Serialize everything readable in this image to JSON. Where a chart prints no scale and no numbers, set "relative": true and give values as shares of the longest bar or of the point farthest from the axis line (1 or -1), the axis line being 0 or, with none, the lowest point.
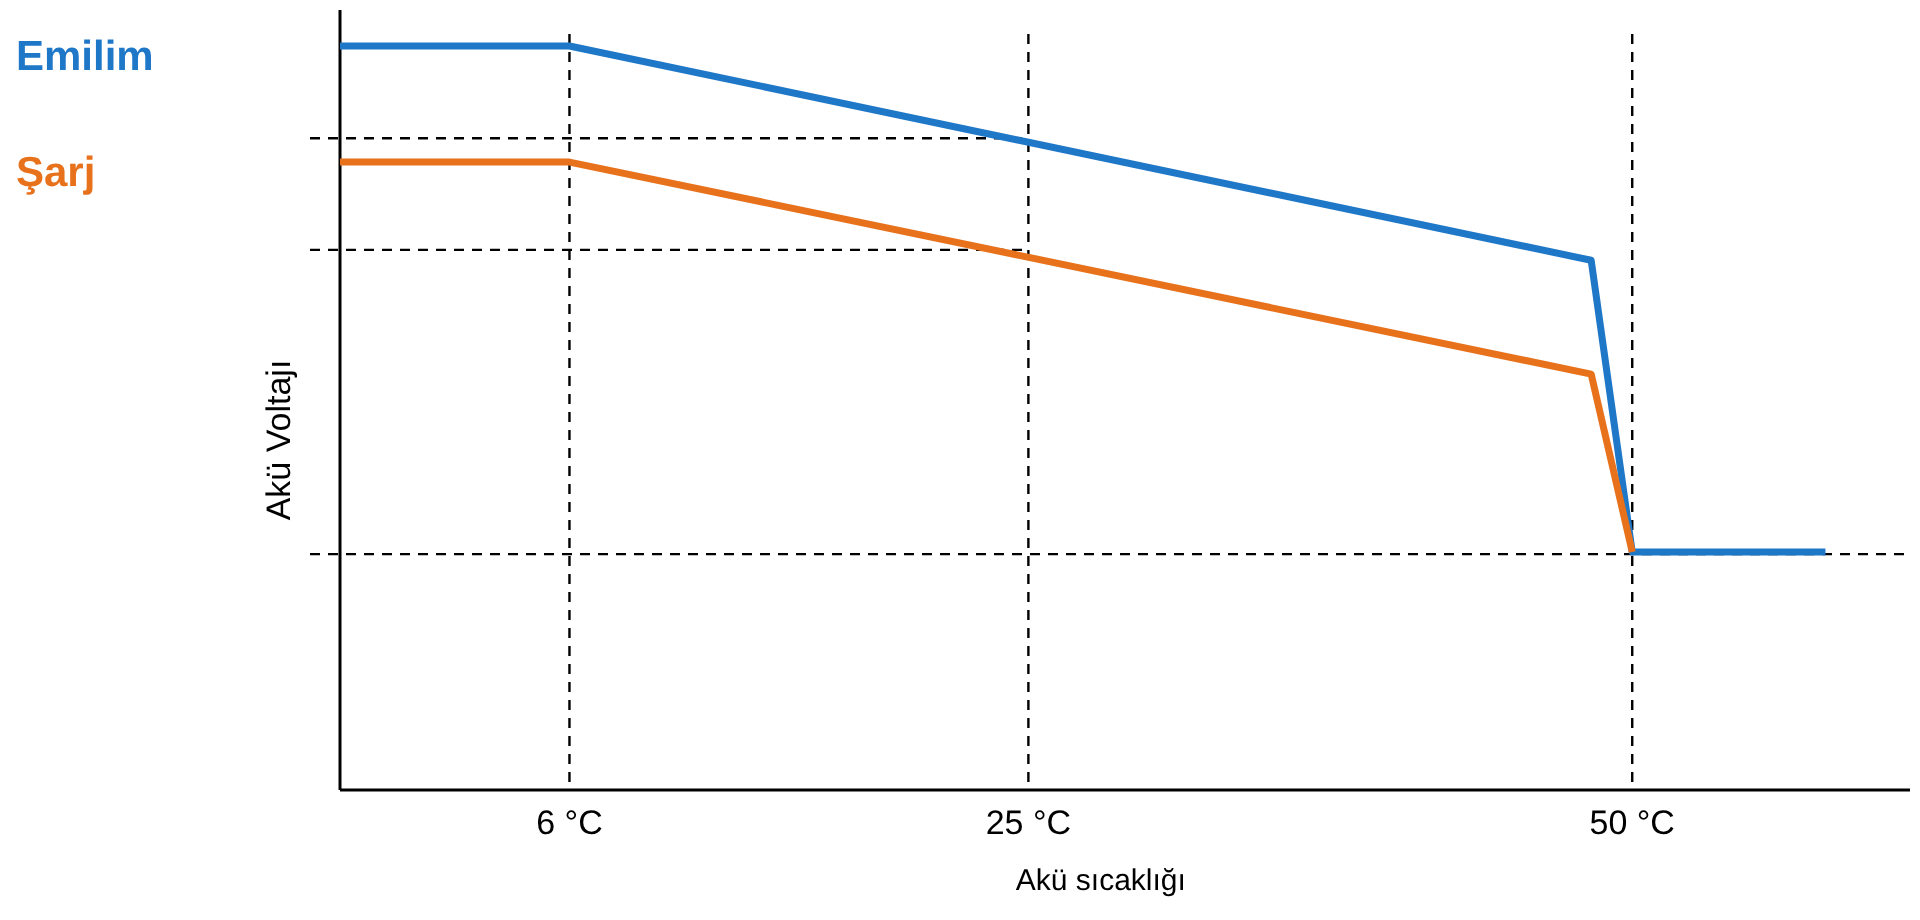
{
  "chart_data": {
    "type": "line",
    "relative": true,
    "xlabel": "Akü sıcaklığı",
    "ylabel": "Akü Voltajı",
    "xlim": [
      -3.5,
      61.5
    ],
    "xticks": [
      {
        "value": 6,
        "label": "6 °C"
      },
      {
        "value": 25,
        "label": "25 °C"
      },
      {
        "value": 50,
        "label": "50 °C"
      }
    ],
    "tick_labels": "x",
    "grid": false,
    "legend": false,
    "line_style": "solid",
    "marker": "none",
    "series": [
      {
        "name": "Emilim",
        "color": "#1f77c8",
        "x": [
          -3.5,
          6,
          48.3,
          50,
          58
        ],
        "values": [
          1,
          1,
          0.712,
          0.32,
          0.32
        ]
      },
      {
        "name": "Şarj",
        "color": "#e8711c",
        "x": [
          -3.5,
          6,
          48.3,
          50
        ],
        "values": [
          0.844,
          0.844,
          0.559,
          0.32
        ]
      }
    ],
    "ref_lines": [
      {
        "axis": "x",
        "value": 6,
        "line_style": "dashed",
        "color": "#000000"
      },
      {
        "axis": "x",
        "value": 25,
        "line_style": "dashed",
        "color": "#000000"
      },
      {
        "axis": "x",
        "value": 50,
        "line_style": "dashed",
        "color": "#000000"
      },
      {
        "axis": "y",
        "value": 0.876,
        "line_style": "dashed",
        "color": "#000000"
      },
      {
        "axis": "y",
        "value": 0.726,
        "line_style": "dashed",
        "color": "#000000"
      },
      {
        "axis": "y",
        "value": 0.317,
        "line_style": "dashed",
        "color": "#000000"
      }
    ]
  }
}
